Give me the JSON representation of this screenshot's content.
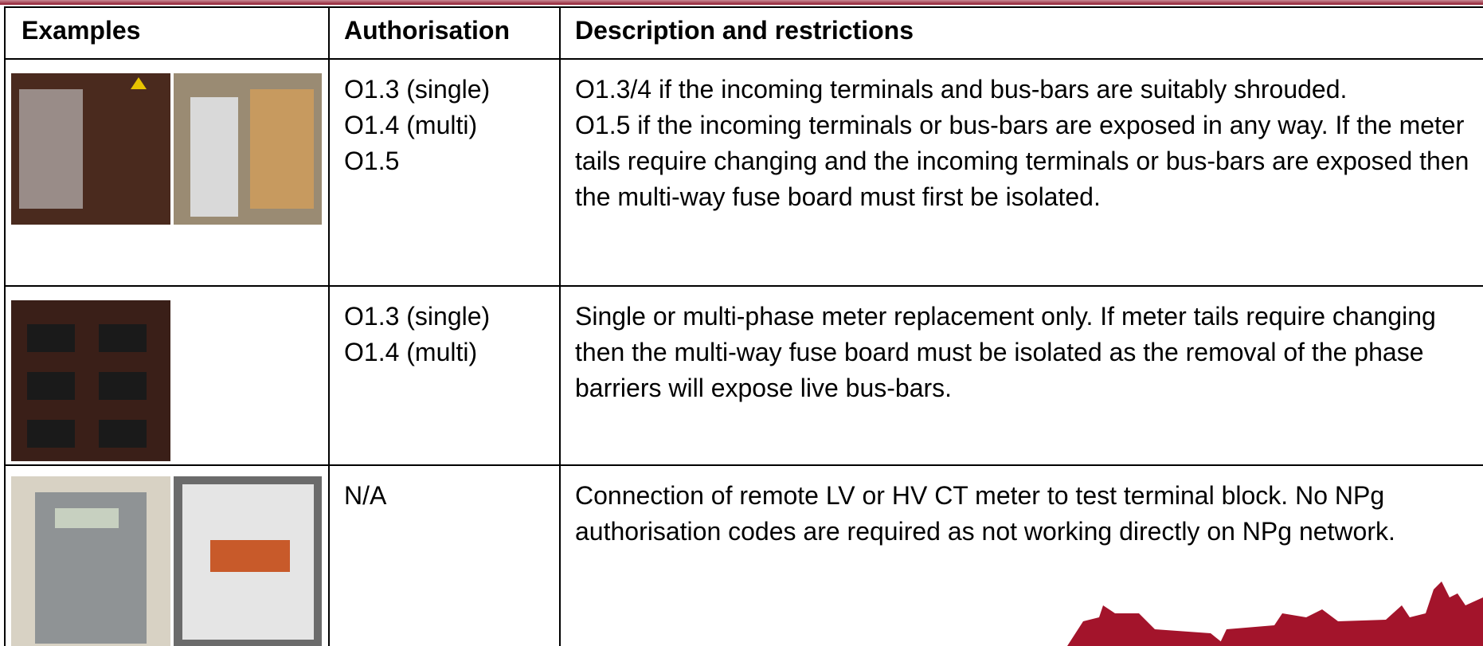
{
  "table": {
    "header": [
      "Examples",
      "Authorisation",
      "Description and restrictions"
    ],
    "rows": [
      {
        "authorisation": [
          "O1.3 (single)",
          "O1.4 (multi)",
          "O1.5"
        ],
        "description": [
          "O1.3/4 if the incoming terminals and bus-bars are suitably shrouded.",
          "O1.5 if the incoming terminals or bus-bars are exposed in any way. If the meter tails require changing and the incoming terminals or bus-bars are exposed then the multi-way fuse board must first be isolated."
        ]
      },
      {
        "authorisation": [
          "O1.3 (single)",
          "O1.4 (multi)"
        ],
        "description": [
          "Single or multi-phase meter replacement only.  If meter tails require changing then the multi-way fuse board must be isolated as the removal of the phase barriers will expose live bus-bars."
        ]
      },
      {
        "authorisation": [
          "N/A"
        ],
        "description": [
          "Connection of remote LV or HV CT meter to test terminal block.  No NPg authorisation codes are required as not working directly on NPg network."
        ]
      }
    ]
  }
}
